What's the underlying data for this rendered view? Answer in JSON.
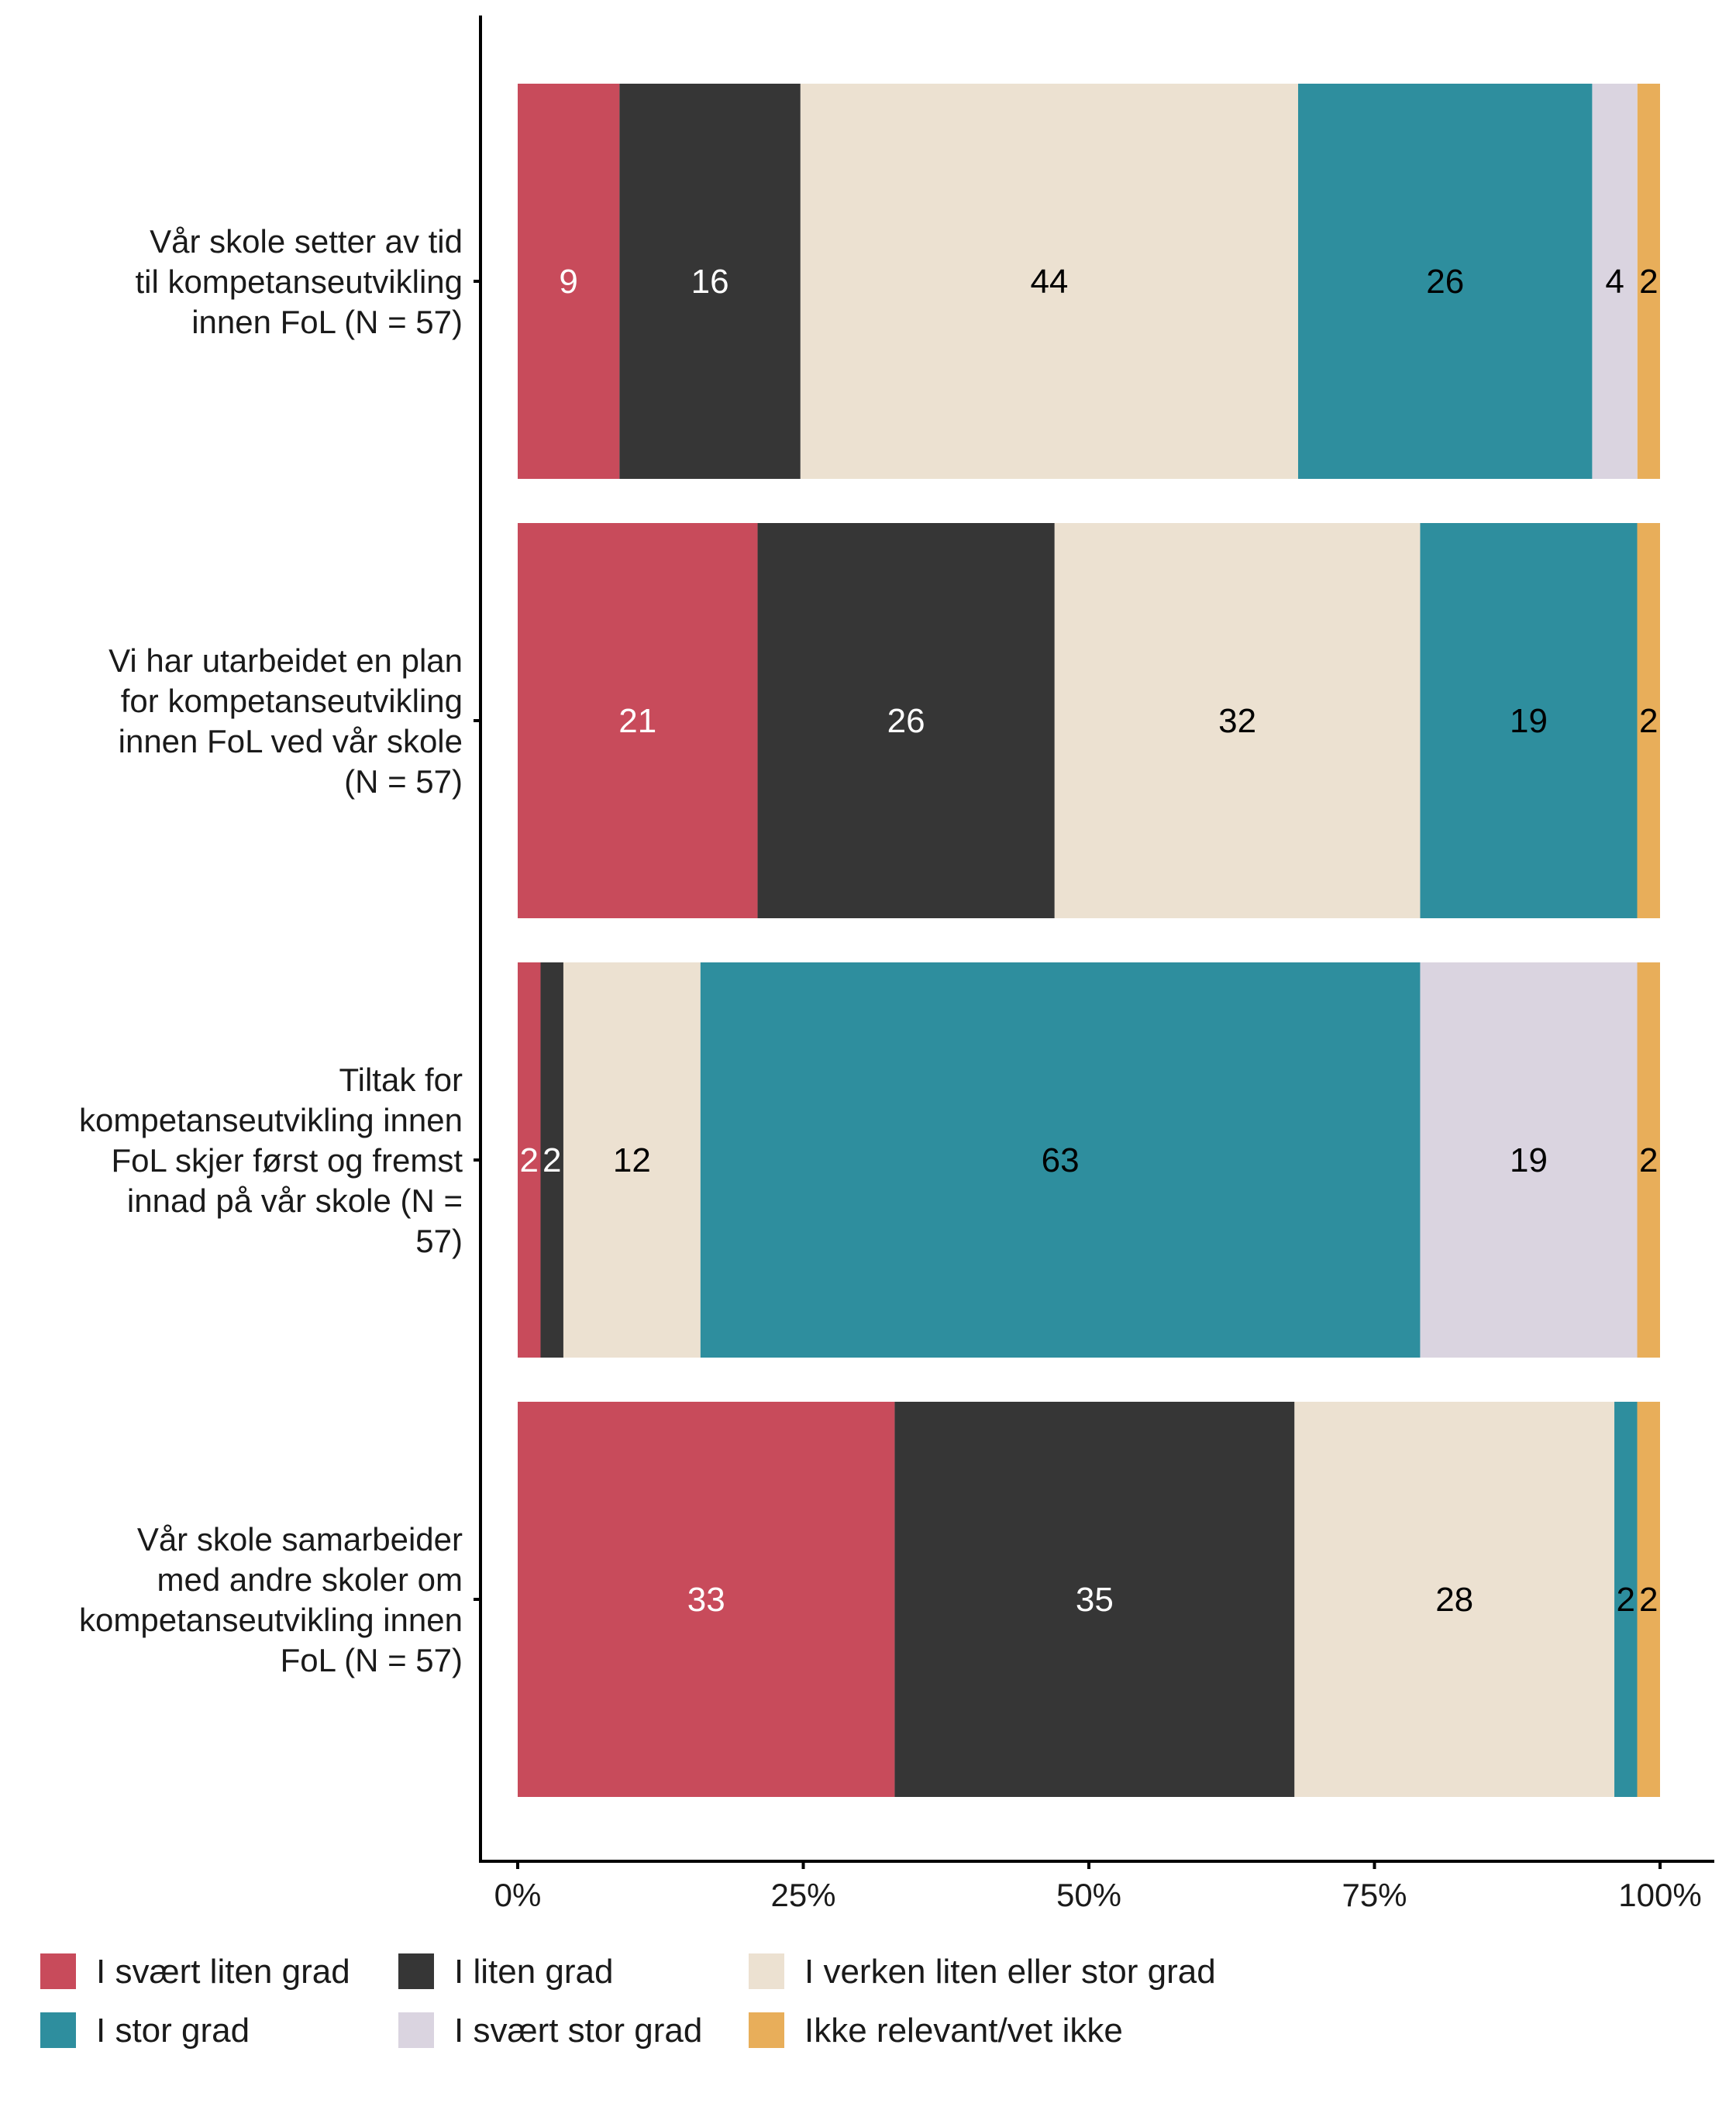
{
  "chart_data": {
    "type": "bar",
    "orientation": "horizontal",
    "stacked": true,
    "categories": [
      [
        "Vår skole setter av tid",
        "til kompetanseutvikling",
        "innen FoL (N = 57)"
      ],
      [
        "Vi har utarbeidet en plan",
        "for kompetanseutvikling",
        "innen FoL ved vår skole",
        "(N = 57)"
      ],
      [
        "Tiltak for",
        "kompetanseutvikling innen",
        "FoL skjer først og fremst",
        "innad på vår skole (N =",
        "57)"
      ],
      [
        "Vår skole samarbeider",
        "med andre skoler om",
        "kompetanseutvikling innen",
        "FoL (N = 57)"
      ]
    ],
    "series": [
      {
        "name": "I svært liten grad",
        "color": "#C84B5B",
        "label_color": "#ffffff",
        "values": [
          9,
          21,
          2,
          33
        ]
      },
      {
        "name": "I liten grad",
        "color": "#363636",
        "label_color": "#ffffff",
        "values": [
          16,
          26,
          2,
          35
        ]
      },
      {
        "name": "I verken liten eller stor grad",
        "color": "#ECE1D1",
        "label_color": "#000000",
        "values": [
          44,
          32,
          12,
          28
        ]
      },
      {
        "name": "I stor grad",
        "color": "#2E8E9E",
        "label_color": "#000000",
        "values": [
          26,
          19,
          63,
          2
        ]
      },
      {
        "name": "I svært stor grad",
        "color": "#DAD4E0",
        "label_color": "#000000",
        "values": [
          4,
          0,
          19,
          0
        ]
      },
      {
        "name": "Ikke relevant/vet ikke",
        "color": "#E8AE5A",
        "label_color": "#000000",
        "values": [
          2,
          2,
          2,
          2
        ]
      }
    ],
    "x_ticks": [
      "0%",
      "25%",
      "50%",
      "75%",
      "100%"
    ],
    "xlim": [
      0,
      100
    ],
    "grid": false,
    "legend_position": "bottom"
  }
}
